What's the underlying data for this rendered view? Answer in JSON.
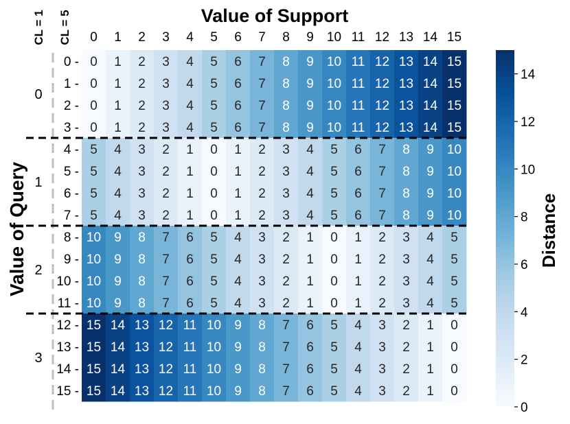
{
  "chart_data": {
    "type": "heatmap",
    "title": "Value of Support",
    "xlabel": "Value of Support",
    "ylabel": "Value of Query",
    "x_categories": [
      "0",
      "1",
      "2",
      "3",
      "4",
      "5",
      "6",
      "7",
      "8",
      "9",
      "10",
      "11",
      "12",
      "13",
      "14",
      "15"
    ],
    "y_categories": [
      "0",
      "1",
      "2",
      "3",
      "4",
      "5",
      "6",
      "7",
      "8",
      "9",
      "10",
      "11",
      "12",
      "13",
      "14",
      "15"
    ],
    "group_header_left": "CL = 1",
    "group_header_right": "CL = 5",
    "groups": [
      {
        "label": "0",
        "rows": [
          0,
          1,
          2,
          3
        ]
      },
      {
        "label": "1",
        "rows": [
          4,
          5,
          6,
          7
        ]
      },
      {
        "label": "2",
        "rows": [
          8,
          9,
          10,
          11
        ]
      },
      {
        "label": "3",
        "rows": [
          12,
          13,
          14,
          15
        ]
      }
    ],
    "values": [
      [
        0,
        1,
        2,
        3,
        4,
        5,
        6,
        7,
        8,
        9,
        10,
        11,
        12,
        13,
        14,
        15
      ],
      [
        0,
        1,
        2,
        3,
        4,
        5,
        6,
        7,
        8,
        9,
        10,
        11,
        12,
        13,
        14,
        15
      ],
      [
        0,
        1,
        2,
        3,
        4,
        5,
        6,
        7,
        8,
        9,
        10,
        11,
        12,
        13,
        14,
        15
      ],
      [
        0,
        1,
        2,
        3,
        4,
        5,
        6,
        7,
        8,
        9,
        10,
        11,
        12,
        13,
        14,
        15
      ],
      [
        5,
        4,
        3,
        2,
        1,
        0,
        1,
        2,
        3,
        4,
        5,
        6,
        7,
        8,
        9,
        10
      ],
      [
        5,
        4,
        3,
        2,
        1,
        0,
        1,
        2,
        3,
        4,
        5,
        6,
        7,
        8,
        9,
        10
      ],
      [
        5,
        4,
        3,
        2,
        1,
        0,
        1,
        2,
        3,
        4,
        5,
        6,
        7,
        8,
        9,
        10
      ],
      [
        5,
        4,
        3,
        2,
        1,
        0,
        1,
        2,
        3,
        4,
        5,
        6,
        7,
        8,
        9,
        10
      ],
      [
        10,
        9,
        8,
        7,
        6,
        5,
        4,
        3,
        2,
        1,
        0,
        1,
        2,
        3,
        4,
        5
      ],
      [
        10,
        9,
        8,
        7,
        6,
        5,
        4,
        3,
        2,
        1,
        0,
        1,
        2,
        3,
        4,
        5
      ],
      [
        10,
        9,
        8,
        7,
        6,
        5,
        4,
        3,
        2,
        1,
        0,
        1,
        2,
        3,
        4,
        5
      ],
      [
        10,
        9,
        8,
        7,
        6,
        5,
        4,
        3,
        2,
        1,
        0,
        1,
        2,
        3,
        4,
        5
      ],
      [
        15,
        14,
        13,
        12,
        11,
        10,
        9,
        8,
        7,
        6,
        5,
        4,
        3,
        2,
        1,
        0
      ],
      [
        15,
        14,
        13,
        12,
        11,
        10,
        9,
        8,
        7,
        6,
        5,
        4,
        3,
        2,
        1,
        0
      ],
      [
        15,
        14,
        13,
        12,
        11,
        10,
        9,
        8,
        7,
        6,
        5,
        4,
        3,
        2,
        1,
        0
      ],
      [
        15,
        14,
        13,
        12,
        11,
        10,
        9,
        8,
        7,
        6,
        5,
        4,
        3,
        2,
        1,
        0
      ]
    ],
    "colorbar": {
      "label": "Distance",
      "min": 0,
      "max": 15,
      "ticks": [
        "0",
        "2",
        "4",
        "6",
        "8",
        "10",
        "12",
        "14"
      ],
      "colormap": "Blues"
    },
    "group_dividers": "dashed"
  },
  "colors": {
    "low": "#f7fbff",
    "high": "#08306b",
    "divider": "#000000",
    "cl1_line": "#bdbdbd",
    "text_light": "#ffffff",
    "text_dark": "#262626"
  }
}
